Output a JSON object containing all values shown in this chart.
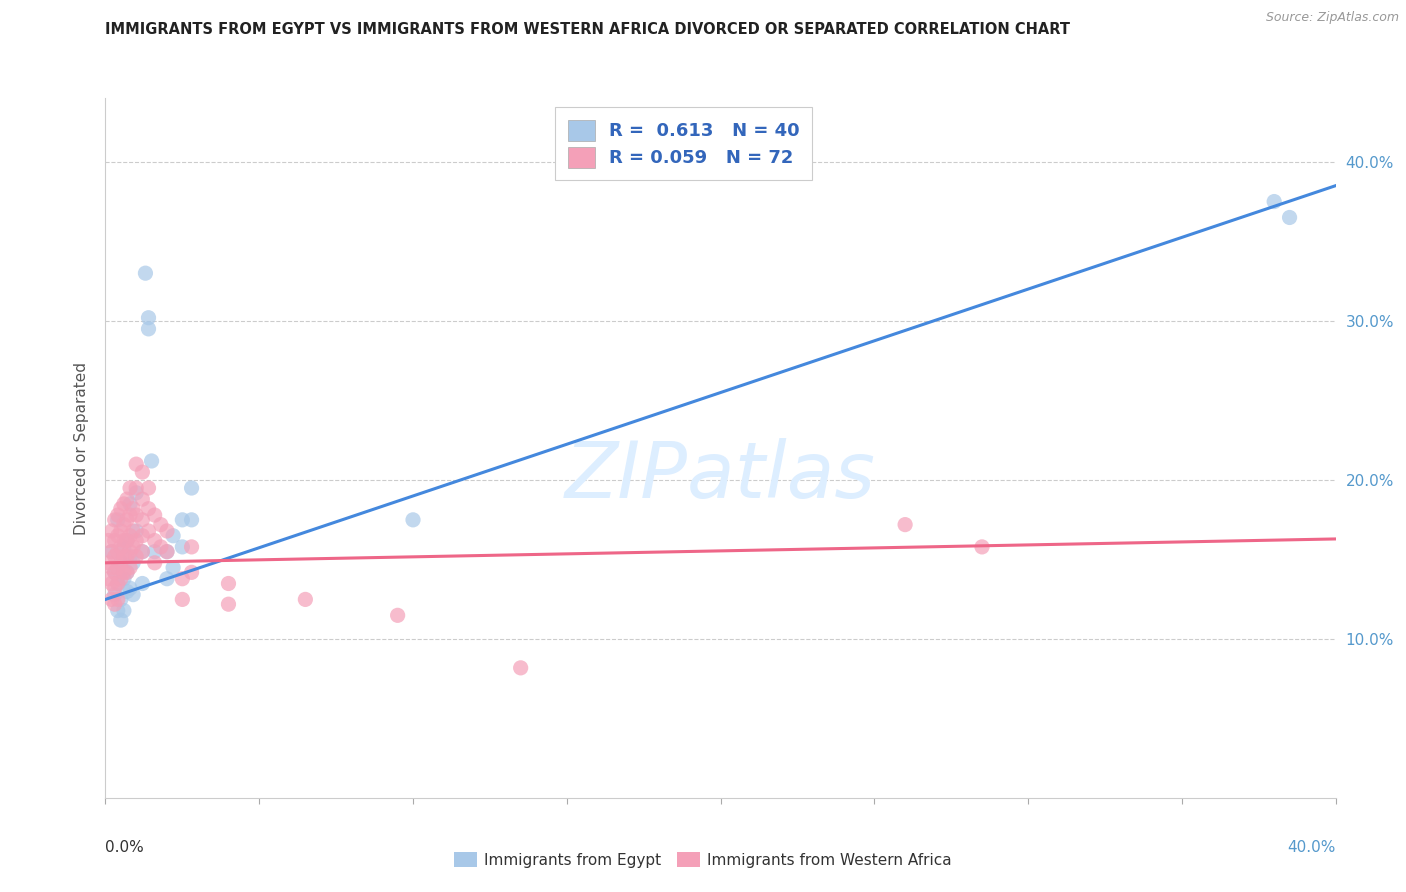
{
  "title": "IMMIGRANTS FROM EGYPT VS IMMIGRANTS FROM WESTERN AFRICA DIVORCED OR SEPARATED CORRELATION CHART",
  "source": "Source: ZipAtlas.com",
  "ylabel": "Divorced or Separated",
  "blue_scatter_color": "#a8c8e8",
  "pink_scatter_color": "#f4a0b8",
  "blue_line_color": "#4488dd",
  "pink_line_color": "#ee6688",
  "watermark_color": "#ddeeff",
  "legend_blue_patch": "#a8c8e8",
  "legend_pink_patch": "#f4a0b8",
  "legend_text_color": "#3366bb",
  "right_label_color": "#5599cc",
  "egypt_line": [
    [
      0.0,
      0.125
    ],
    [
      0.4,
      0.385
    ]
  ],
  "west_africa_line": [
    [
      0.0,
      0.148
    ],
    [
      0.4,
      0.163
    ]
  ],
  "egypt_points": [
    [
      0.002,
      0.155
    ],
    [
      0.003,
      0.142
    ],
    [
      0.003,
      0.128
    ],
    [
      0.004,
      0.175
    ],
    [
      0.004,
      0.135
    ],
    [
      0.004,
      0.118
    ],
    [
      0.005,
      0.148
    ],
    [
      0.005,
      0.125
    ],
    [
      0.005,
      0.112
    ],
    [
      0.006,
      0.158
    ],
    [
      0.006,
      0.138
    ],
    [
      0.006,
      0.118
    ],
    [
      0.007,
      0.162
    ],
    [
      0.007,
      0.142
    ],
    [
      0.007,
      0.13
    ],
    [
      0.008,
      0.185
    ],
    [
      0.008,
      0.152
    ],
    [
      0.008,
      0.132
    ],
    [
      0.009,
      0.148
    ],
    [
      0.009,
      0.128
    ],
    [
      0.01,
      0.192
    ],
    [
      0.01,
      0.168
    ],
    [
      0.012,
      0.155
    ],
    [
      0.012,
      0.135
    ],
    [
      0.013,
      0.33
    ],
    [
      0.014,
      0.302
    ],
    [
      0.014,
      0.295
    ],
    [
      0.015,
      0.212
    ],
    [
      0.016,
      0.155
    ],
    [
      0.02,
      0.155
    ],
    [
      0.02,
      0.138
    ],
    [
      0.022,
      0.165
    ],
    [
      0.022,
      0.145
    ],
    [
      0.025,
      0.175
    ],
    [
      0.025,
      0.158
    ],
    [
      0.028,
      0.195
    ],
    [
      0.028,
      0.175
    ],
    [
      0.1,
      0.175
    ],
    [
      0.38,
      0.375
    ],
    [
      0.385,
      0.365
    ]
  ],
  "west_africa_points": [
    [
      0.001,
      0.162
    ],
    [
      0.001,
      0.148
    ],
    [
      0.001,
      0.138
    ],
    [
      0.002,
      0.168
    ],
    [
      0.002,
      0.155
    ],
    [
      0.002,
      0.145
    ],
    [
      0.002,
      0.135
    ],
    [
      0.002,
      0.125
    ],
    [
      0.003,
      0.175
    ],
    [
      0.003,
      0.162
    ],
    [
      0.003,
      0.152
    ],
    [
      0.003,
      0.142
    ],
    [
      0.003,
      0.132
    ],
    [
      0.003,
      0.122
    ],
    [
      0.004,
      0.178
    ],
    [
      0.004,
      0.165
    ],
    [
      0.004,
      0.155
    ],
    [
      0.004,
      0.145
    ],
    [
      0.004,
      0.135
    ],
    [
      0.004,
      0.125
    ],
    [
      0.005,
      0.182
    ],
    [
      0.005,
      0.168
    ],
    [
      0.005,
      0.158
    ],
    [
      0.005,
      0.148
    ],
    [
      0.005,
      0.138
    ],
    [
      0.006,
      0.185
    ],
    [
      0.006,
      0.172
    ],
    [
      0.006,
      0.162
    ],
    [
      0.006,
      0.152
    ],
    [
      0.006,
      0.142
    ],
    [
      0.007,
      0.188
    ],
    [
      0.007,
      0.175
    ],
    [
      0.007,
      0.162
    ],
    [
      0.007,
      0.152
    ],
    [
      0.007,
      0.142
    ],
    [
      0.008,
      0.195
    ],
    [
      0.008,
      0.178
    ],
    [
      0.008,
      0.165
    ],
    [
      0.008,
      0.155
    ],
    [
      0.008,
      0.145
    ],
    [
      0.009,
      0.182
    ],
    [
      0.009,
      0.168
    ],
    [
      0.009,
      0.158
    ],
    [
      0.01,
      0.21
    ],
    [
      0.01,
      0.195
    ],
    [
      0.01,
      0.178
    ],
    [
      0.01,
      0.162
    ],
    [
      0.01,
      0.152
    ],
    [
      0.012,
      0.205
    ],
    [
      0.012,
      0.188
    ],
    [
      0.012,
      0.175
    ],
    [
      0.012,
      0.165
    ],
    [
      0.012,
      0.155
    ],
    [
      0.014,
      0.195
    ],
    [
      0.014,
      0.182
    ],
    [
      0.014,
      0.168
    ],
    [
      0.016,
      0.178
    ],
    [
      0.016,
      0.162
    ],
    [
      0.016,
      0.148
    ],
    [
      0.018,
      0.172
    ],
    [
      0.018,
      0.158
    ],
    [
      0.02,
      0.168
    ],
    [
      0.02,
      0.155
    ],
    [
      0.025,
      0.138
    ],
    [
      0.025,
      0.125
    ],
    [
      0.028,
      0.158
    ],
    [
      0.028,
      0.142
    ],
    [
      0.04,
      0.135
    ],
    [
      0.04,
      0.122
    ],
    [
      0.065,
      0.125
    ],
    [
      0.095,
      0.115
    ],
    [
      0.135,
      0.082
    ],
    [
      0.26,
      0.172
    ],
    [
      0.285,
      0.158
    ]
  ]
}
